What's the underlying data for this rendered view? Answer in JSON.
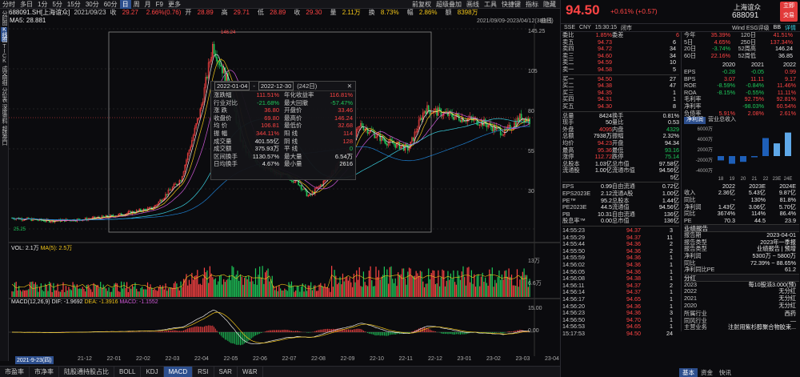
{
  "topbar": {
    "items": [
      "分时",
      "多日",
      "1分",
      "5分",
      "15分",
      "30分",
      "60分",
      "日",
      "周",
      "月",
      "F9",
      "更多"
    ],
    "active": "日",
    "right": [
      "前复权",
      "超级叠加",
      "画线",
      "工具",
      "快捷键",
      "指标",
      "隐藏"
    ]
  },
  "leftnav": {
    "items": [
      "分时图",
      "K线图",
      "TICK",
      "成交明细",
      "分价表",
      "深度资料",
      "超级盘口"
    ],
    "active": "K线图"
  },
  "infobar": {
    "code": "688091.SH[上海谊众]",
    "date": "2021/09/23",
    "close_label": "收",
    "close": "29.27",
    "chg": "2.66%(0.76)",
    "open_label": "开",
    "open": "28.89",
    "high_label": "高",
    "high": "29.71",
    "low_label": "低",
    "low": "28.89",
    "close2_label": "收",
    "close2": "29.30",
    "vol_label": "量",
    "vol": "2.11万",
    "turn_label": "换",
    "turn": "8.73%",
    "amp_label": "幅",
    "amp": "2.86%",
    "amt_label": "额",
    "amt": "8398万"
  },
  "rangebar": {
    "ma": "MA5: 28.881",
    "range": "2021/09/09-2023/04/12(383日)",
    "range_icon": "曲线"
  },
  "axis": {
    "main": [
      "145.25",
      "105",
      "80",
      "55",
      "30"
    ],
    "vol": [
      "13万",
      "6.6万"
    ],
    "macd": [
      "15.00",
      "0.00"
    ],
    "high_mark": "146.24",
    "low_mark": "25.25"
  },
  "volbar": {
    "label": "VOL: 2.1万",
    "ma": "MA(5): 2.5万"
  },
  "macdbar": {
    "label": "MACD(12,26,9)",
    "dif": "DIF: -1.9692",
    "dea": "DEA: -1.3916",
    "macd": "MACD: -1.1552"
  },
  "dates": [
    "21-12",
    "22-01",
    "22-02",
    "22-03",
    "22-04",
    "22-05",
    "22-06",
    "22-07",
    "22-08",
    "22-09",
    "22-10",
    "22-11",
    "22-12",
    "23-01",
    "23-02",
    "23-03",
    "23-04"
  ],
  "date_cur": "2021-9-23(四)",
  "tooltip": {
    "from": "2022-01-04",
    "to": "2022-12-30",
    "days": "(242日)",
    "rows": [
      [
        "涨跌幅",
        "111.51%",
        "年化收益率",
        "116.81%"
      ],
      [
        "行业对比",
        "-21.68%",
        "最大回撤",
        "-57.47%"
      ],
      [
        "涨 跌",
        "36.80",
        "开盘价",
        "33.46"
      ],
      [
        "收盘价",
        "69.80",
        "最高价",
        "146.24"
      ],
      [
        "均 价",
        "106.81",
        "最低价",
        "32.68"
      ],
      [
        "振 幅",
        "344.11%",
        "阳 线",
        "114"
      ],
      [
        "成交量",
        "401.55亿",
        "阴 线",
        "128"
      ],
      [
        "成交额",
        "375.93万",
        "平 线",
        "0"
      ],
      [
        "区间换手",
        "1130.57%",
        "最大量",
        "6.54万"
      ],
      [
        "日均换手",
        "4.67%",
        "最小量",
        "2616"
      ]
    ]
  },
  "bottomtabs": {
    "items": [
      "市盈率",
      "市净率",
      "陆股通持股占比",
      "BOLL",
      "KDJ",
      "MACD",
      "RSI",
      "SAR",
      "W&R"
    ],
    "active": "MACD"
  },
  "quote": {
    "price": "94.50",
    "chg": "+0.61%",
    "chgv": "(+0.57)",
    "name": "上海谊众",
    "code": "688091",
    "buy": [
      "立即",
      "交易"
    ],
    "sub": [
      "SSE",
      "CNY",
      "15:30:15",
      "闭市"
    ],
    "sub2": [
      "Wind ESG评级",
      "BB",
      "详情"
    ],
    "weibi": [
      "委比",
      "1.85%",
      "委差",
      "6"
    ],
    "asks": [
      [
        "卖五",
        "94.73",
        "6"
      ],
      [
        "卖四",
        "94.72",
        "34"
      ],
      [
        "卖三",
        "94.60",
        "34"
      ],
      [
        "卖二",
        "94.59",
        "10"
      ],
      [
        "卖一",
        "94.58",
        "5"
      ]
    ],
    "bids": [
      [
        "买一",
        "94.50",
        "27"
      ],
      [
        "买二",
        "94.38",
        "47"
      ],
      [
        "买三",
        "94.35",
        "1"
      ],
      [
        "买四",
        "94.31",
        "1"
      ],
      [
        "买五",
        "94.30",
        "8"
      ]
    ],
    "stats": [
      [
        "总量",
        "8424",
        "换手",
        "0.81%"
      ],
      [
        "现手",
        "50",
        "量比",
        "0.53"
      ],
      [
        "外盘",
        "4095",
        "内盘",
        "4329"
      ],
      [
        "总额",
        "7938万",
        "振幅",
        "2.32%"
      ],
      [
        "均价",
        "94.23",
        "开盘",
        "94.34"
      ],
      [
        "最高",
        "95.36",
        "最低",
        "93.16"
      ],
      [
        "涨停",
        "112.72",
        "跌停",
        "75.14"
      ],
      [
        "总股本",
        "1.03亿",
        "总市值",
        "97.58亿"
      ],
      [
        "流通股",
        "1.00亿",
        "流通市值",
        "94.56亿"
      ],
      [
        "",
        "",
        "",
        "5亿"
      ]
    ],
    "fund": [
      [
        "EPS",
        "0.99",
        "自由流通",
        "0.72亿"
      ],
      [
        "EPS2023E",
        "2.12",
        "流通A股",
        "1.00亿"
      ],
      [
        "PE™",
        "95.2",
        "总股本",
        "1.44亿"
      ],
      [
        "PE2023E",
        "44.5",
        "流通值",
        "94.56亿"
      ],
      [
        "PB",
        "10.31",
        "自由流通",
        "136亿"
      ],
      [
        "股息率™",
        "0.00",
        "总市值",
        "136亿"
      ]
    ],
    "perf": [
      [
        "5日",
        "1.85%",
        "今年",
        "35.39%",
        "120日",
        "41.51%"
      ],
      [
        "5日",
        "4.72%",
        "5日",
        "4.65%",
        "250日",
        "137.34%"
      ],
      [
        "20日",
        "-",
        "20日",
        "-3.74%",
        "52周高",
        "146.24"
      ],
      [
        "60日",
        "-",
        "60日",
        "22.16%",
        "52周低",
        "36.85"
      ]
    ],
    "fin_header": [
      "",
      "2020",
      "2021",
      "2022"
    ],
    "fin": [
      [
        "EPS",
        "-0.28",
        "-0.05",
        "0.99"
      ],
      [
        "BPS",
        "3.07",
        "11.11",
        "9.17"
      ],
      [
        "ROE",
        "-8.59%",
        "-0.84%",
        "11.46%"
      ],
      [
        "ROA",
        "-8.15%",
        "-0.55%",
        "11.11%"
      ],
      [
        "毛利率",
        "",
        "92.75%",
        "92.81%"
      ],
      [
        "净利率",
        "",
        "-98.03%",
        "60.54%"
      ],
      [
        "负债率",
        "5.91%",
        "2.08%",
        "2.61%"
      ]
    ],
    "bar_tabs": [
      "净利润",
      "营业总收入"
    ],
    "bar_years": [
      "18",
      "19",
      "20",
      "21",
      "22",
      "23E",
      "24E"
    ],
    "bar_axis": [
      "6000万",
      "4000万",
      "2000万",
      "-2000万",
      "-4000万"
    ],
    "bar_values": [
      -1800,
      -3200,
      -2400,
      -500,
      7500,
      5300,
      9800
    ],
    "est_header": [
      "",
      "2022",
      "2023E",
      "2024E"
    ],
    "est": [
      [
        "收入",
        "2.36亿",
        "5.43亿",
        "9.87亿"
      ],
      [
        "同比",
        "-",
        "130%",
        "81.8%"
      ],
      [
        "净利润",
        "1.43亿",
        "3.06亿",
        "5.70亿"
      ],
      [
        "同比",
        "3674%",
        "114%",
        "86.4%"
      ],
      [
        "PE",
        "70.3",
        "44.5",
        "23.9"
      ]
    ],
    "news_title": "业绩报告",
    "news": [
      [
        "报告期",
        "2023-04-01"
      ],
      [
        "报告类型",
        "2023年一季报"
      ],
      [
        "报告类型",
        "业绩报告 | 预增"
      ],
      [
        "净利润",
        "5300万 ~ 5800万"
      ],
      [
        "同比",
        "72.39% ~ 88.65%"
      ],
      [
        "净利同比PE",
        "61.2"
      ]
    ],
    "div_title": "分红",
    "div": [
      [
        "2023",
        "每10股派3.000(预)"
      ],
      [
        "2022",
        "无分红"
      ],
      [
        "2021",
        "无分红"
      ],
      [
        "2020",
        "无分红"
      ]
    ],
    "industry": [
      [
        "所属行业",
        "西药"
      ],
      [
        "同风行业",
        "—"
      ],
      [
        "主营业务",
        "注射用紫杉醇聚合物胶束..."
      ]
    ],
    "ticks": [
      [
        "14:55:23",
        "94.37",
        "3"
      ],
      [
        "14:55:29",
        "94.37",
        "11"
      ],
      [
        "14:55:44",
        "94.36",
        "2"
      ],
      [
        "14:55:50",
        "94.36",
        "2"
      ],
      [
        "14:55:59",
        "94.36",
        "1"
      ],
      [
        "14:56:02",
        "94.36",
        "1"
      ],
      [
        "14:56:05",
        "94.36",
        "1"
      ],
      [
        "14:56:08",
        "94.38",
        "1"
      ],
      [
        "14:56:11",
        "94.37",
        "2"
      ],
      [
        "14:56:14",
        "94.37",
        "1"
      ],
      [
        "14:56:17",
        "94.65",
        "1"
      ],
      [
        "14:56:20",
        "94.36",
        "1"
      ],
      [
        "14:56:23",
        "94.36",
        "3"
      ],
      [
        "14:56:50",
        "94.70",
        "1"
      ],
      [
        "14:56:53",
        "94.65",
        "1"
      ],
      [
        "15:17:53",
        "94.50",
        "24"
      ]
    ],
    "rbottom": [
      "基本",
      "资金",
      "快讯"
    ],
    "rbottom_active": "基本"
  },
  "colors": {
    "up": "#ff4444",
    "down": "#1ec95a",
    "ma5": "#e8e8e8",
    "ma10": "#f0c419",
    "ma20": "#d05ad8",
    "ma60": "#3ad0e0",
    "ma120": "#1e7fd0"
  }
}
